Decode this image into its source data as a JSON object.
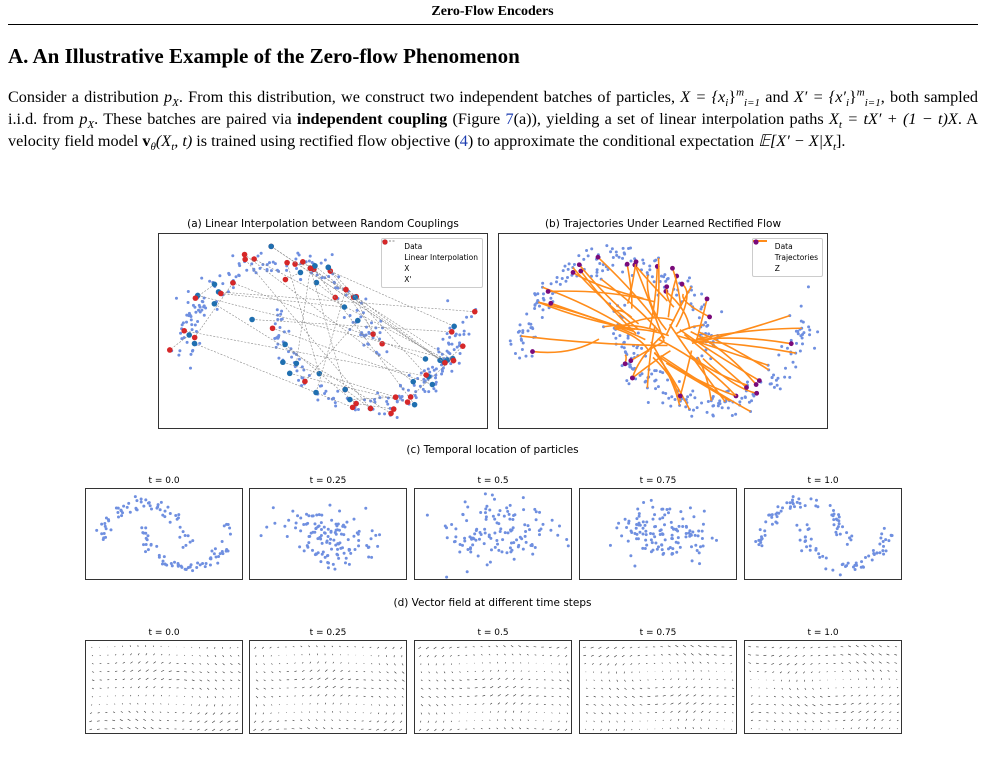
{
  "running_head": "Zero-Flow Encoders",
  "section_title": "A. An Illustrative Example of the Zero-flow Phenomenon",
  "paragraph": {
    "line1_pre": "Consider a distribution ",
    "px_sym": "p",
    "px_sub": "X",
    "line1_mid": ". From this distribution, we construct two independent batches of particles, ",
    "set_x": "X = {x",
    "set_x_sub": "i",
    "set_x_close": "}",
    "set_sup": "m",
    "set_sub": "i=1",
    "and": " and",
    "set_xp": "X′ = {x′",
    "line2_mid": ", both sampled i.i.d. from ",
    "line2_mid2": ". These batches are paired via ",
    "bold": "independent coupling",
    "fig_pre": " (Figure ",
    "fig_ref": "7",
    "fig_post": "(a)), yielding",
    "line3_pre": "a set of linear interpolation paths ",
    "xt_eq": "X",
    "xt_sub": "t",
    "xt_rhs": " = tX′ + (1 − t)X",
    "line3_mid": ". A velocity field model ",
    "vtheta": "v",
    "vtheta_sub": "θ",
    "vtheta_args": "(X",
    "vtheta_args2": ", t)",
    "line3_post": " is trained using rectified flow",
    "line4_pre": "objective (",
    "eq_ref": "4",
    "line4_mid": ") to approximate the conditional expectation ",
    "expect": "𝔼[X′ − X|X",
    "expect_close": "]."
  },
  "figure": {
    "panel_a_title": "(a) Linear Interpolation between Random Couplings",
    "panel_b_title": "(b) Trajectories Under Learned Rectified Flow",
    "legend_a": [
      "Data",
      "Linear Interpolation",
      "X",
      "X'"
    ],
    "legend_b": [
      "Data",
      "Trajectories",
      "Z"
    ],
    "caption_c": "(c) Temporal location of particles",
    "caption_d": "(d) Vector field at different time steps",
    "time_labels": [
      "t = 0.0",
      "t = 0.25",
      "t = 0.5",
      "t = 0.75",
      "t = 1.0"
    ],
    "colors": {
      "data": "#6f8fe0",
      "x": "#1f6fb0",
      "xprime": "#d62728",
      "trajectory": "#ff8c1a",
      "z": "#7a0a7a",
      "interp": "#8a8a8a"
    }
  }
}
